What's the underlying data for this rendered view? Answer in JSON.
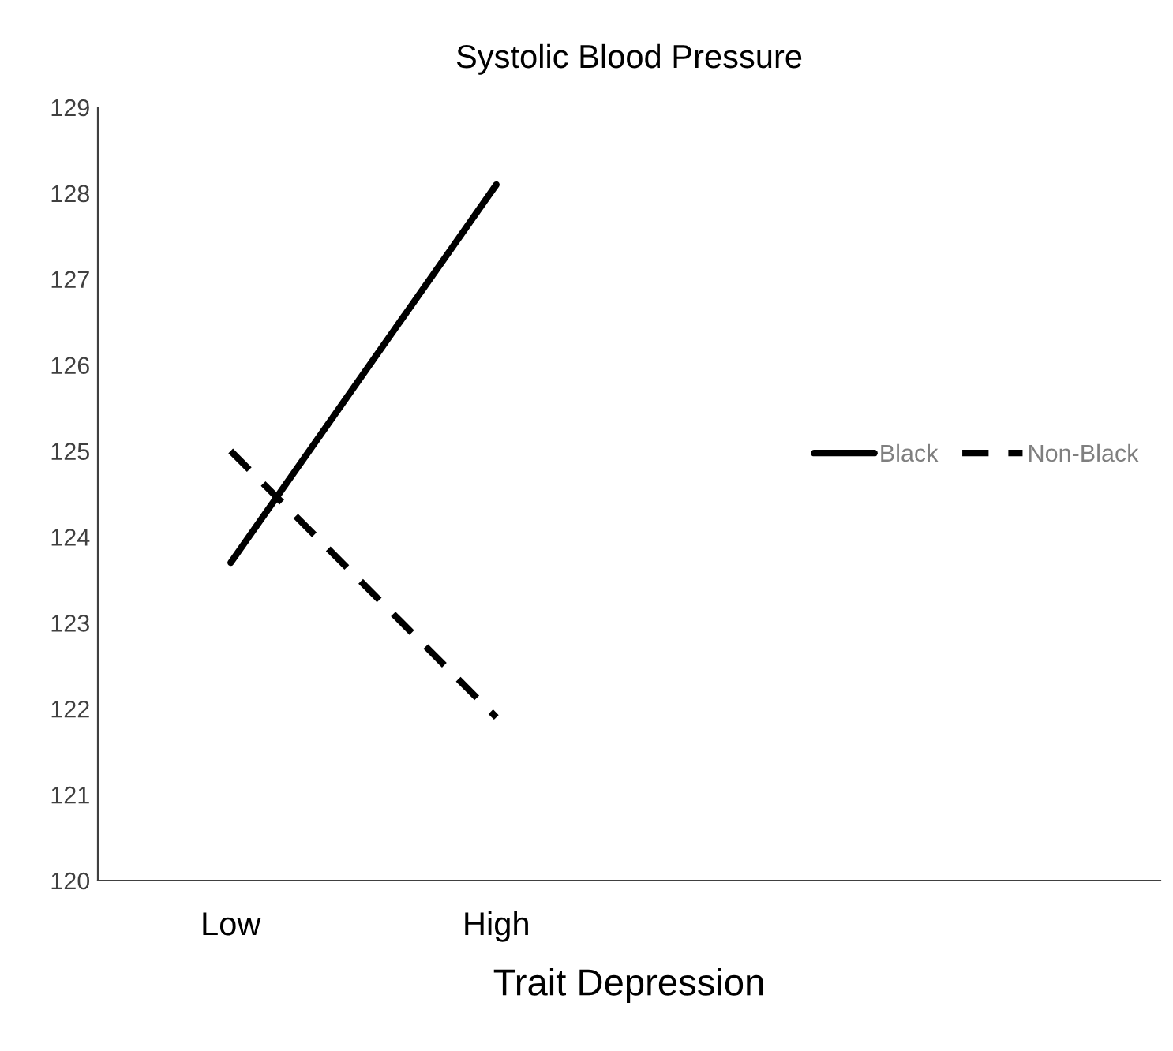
{
  "chart_data": {
    "type": "line",
    "title": "Systolic Blood Pressure",
    "xlabel": "Trait Depression",
    "categories": [
      "Low",
      "High",
      null,
      null
    ],
    "series": [
      {
        "name": "Black",
        "color": "#000000",
        "line_style": "solid",
        "values": [
          123.7,
          128.1,
          null,
          null
        ]
      },
      {
        "name": "Non-Black",
        "color": "#000000",
        "line_style": "dashed",
        "values": [
          125.0,
          121.9,
          null,
          null
        ]
      }
    ],
    "ylim": [
      120,
      129
    ],
    "yticks": [
      120,
      121,
      122,
      123,
      124,
      125,
      126,
      127,
      128,
      129
    ],
    "grid": false,
    "legend": "right",
    "marker": "none"
  }
}
